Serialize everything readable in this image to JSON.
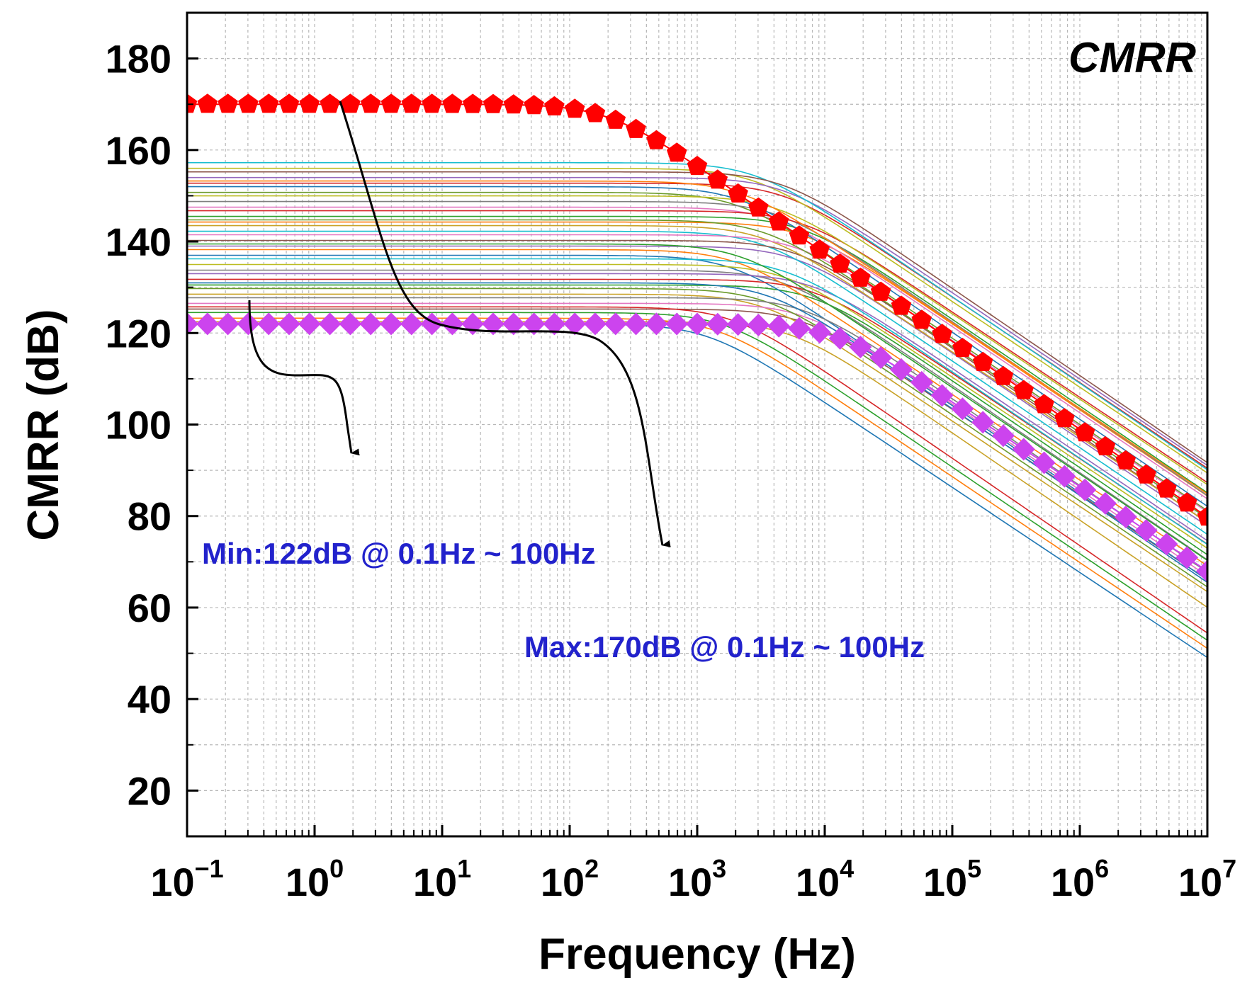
{
  "chart_data": {
    "type": "line",
    "title": "",
    "panel_label": "CMRR",
    "xlabel": "Frequency (Hz)",
    "ylabel": "CMRR (dB)",
    "x_scale": "log",
    "xlim": [
      0.1,
      10000000
    ],
    "ylim": [
      10,
      190
    ],
    "grid": true,
    "y_ticks": [
      20,
      40,
      60,
      80,
      100,
      120,
      140,
      160,
      180
    ],
    "x_ticks": [
      {
        "base": "10",
        "exp": "−1"
      },
      {
        "base": "10",
        "exp": "0"
      },
      {
        "base": "10",
        "exp": "1"
      },
      {
        "base": "10",
        "exp": "2"
      },
      {
        "base": "10",
        "exp": "3"
      },
      {
        "base": "10",
        "exp": "4"
      },
      {
        "base": "10",
        "exp": "5"
      },
      {
        "base": "10",
        "exp": "6"
      },
      {
        "base": "10",
        "exp": "7"
      }
    ],
    "highlighted_series": [
      {
        "role": "max",
        "marker": "pentagon",
        "color": "#ff0000",
        "dc_gain_db": 170,
        "pole_hz": 200,
        "high_freq_slope_db_per_decade": -19.2
      },
      {
        "role": "min",
        "marker": "diamond",
        "color": "#cc44ee",
        "dc_gain_db": 122,
        "pole_hz": 12000,
        "high_freq_slope_db_per_decade": -18.5
      }
    ],
    "background_curves": {
      "count": 40,
      "dc_gain_range_db": [
        122,
        158
      ],
      "colors": [
        "#1f77b4",
        "#ff7f0e",
        "#2ca02c",
        "#d62728",
        "#9467bd",
        "#8c564b",
        "#e377c2",
        "#7f7f7f",
        "#bcbd22",
        "#17becf",
        "#c9a227",
        "#6a9a2a"
      ]
    },
    "annotations": [
      {
        "text": "Min:122dB @ 0.1Hz ~ 100Hz",
        "color": "#2222cc"
      },
      {
        "text": "Max:170dB @ 0.1Hz ~ 100Hz",
        "color": "#2222cc"
      }
    ]
  }
}
